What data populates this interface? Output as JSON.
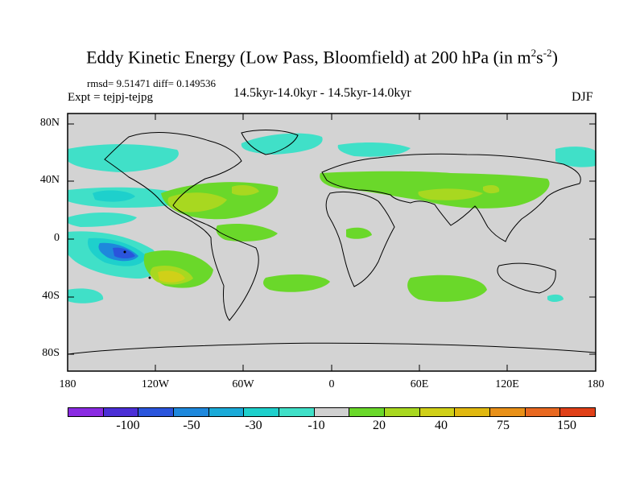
{
  "title": {
    "main": "Eddy Kinetic Energy (Low Pass, Bloomfield) at 200 hPa (in m",
    "sup1": "2",
    "mid": "s",
    "sup2": "-2",
    "close": ")"
  },
  "stats": "rmsd= 9.51471 diff= 0.149536",
  "expt": "Expt = tejpj-tejpg",
  "subtitle": "14.5kyr-14.0kyr - 14.5kyr-14.0kyr",
  "season": "DJF",
  "lat_labels": [
    "80N",
    "40N",
    "0",
    "40S",
    "80S"
  ],
  "lon_labels": [
    "180",
    "120W",
    "60W",
    "0",
    "60E",
    "120E",
    "180"
  ],
  "colorbar": {
    "colors": [
      "#8a2be2",
      "#4b2fd6",
      "#2a55dc",
      "#1e88dc",
      "#1aaad8",
      "#1ed0cc",
      "#40e0c8",
      "#d0d0d0",
      "#6ad82a",
      "#a8d820",
      "#d0d018",
      "#e0b810",
      "#e89018",
      "#e86820",
      "#e04018"
    ],
    "labels": [
      "-100",
      "-50",
      "-30",
      "-10",
      "20",
      "40",
      "75",
      "150"
    ]
  },
  "map_colors": {
    "ocean": "#d3d3d3",
    "teal": "#40e0c8",
    "cyan": "#1ed0cc",
    "blue": "#1e88dc",
    "darkblue": "#2a55dc",
    "green": "#6ad82a",
    "yellowgreen": "#a8d820",
    "yellow": "#d0d018",
    "orange": "#e0b810"
  }
}
